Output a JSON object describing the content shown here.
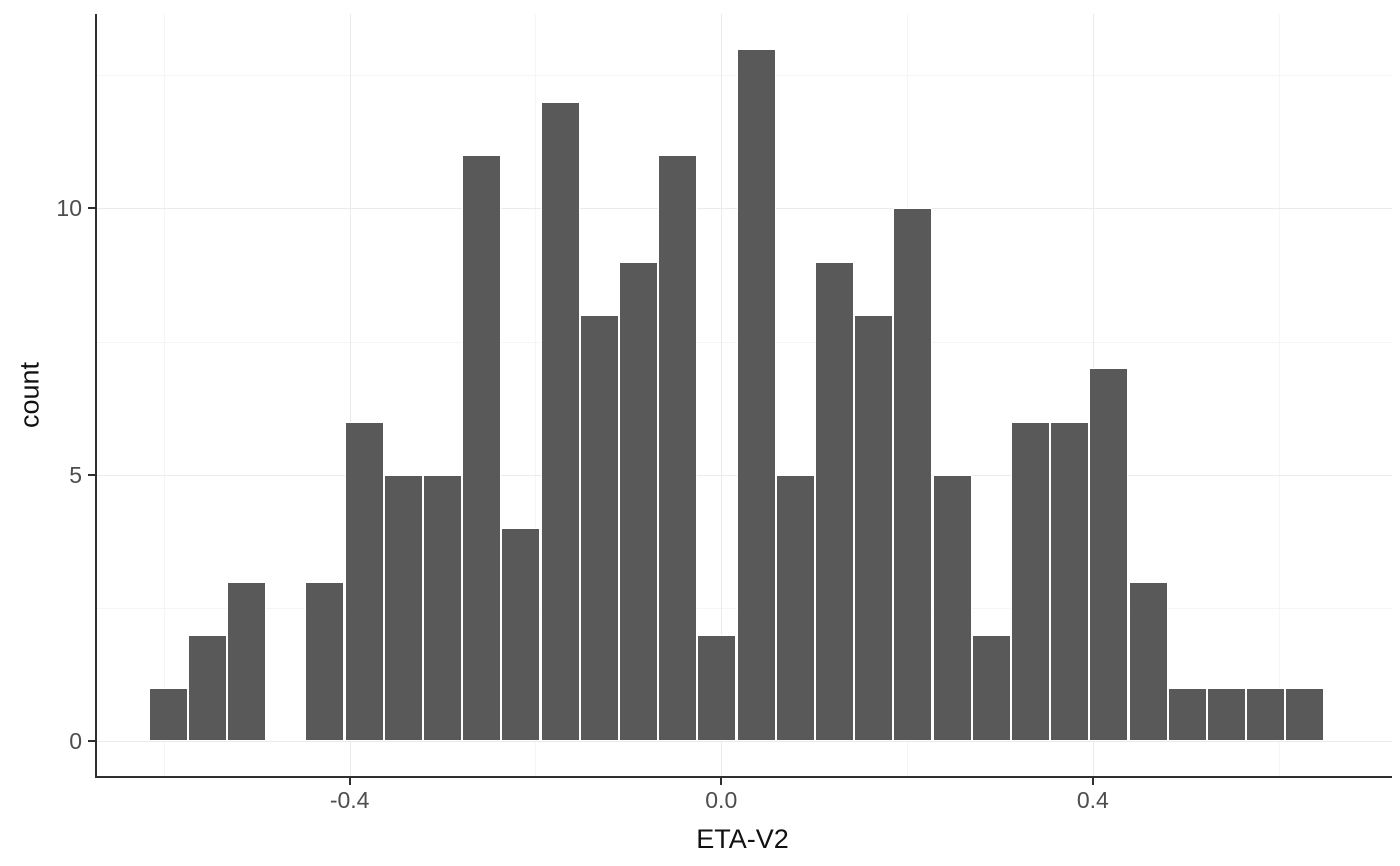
{
  "chart_data": {
    "type": "bar",
    "subtype": "histogram",
    "title": "",
    "xlabel": "ETA-V2",
    "ylabel": "count",
    "n_bins": 30,
    "bin_width": 0.0422,
    "bin_centers": [
      -0.595,
      -0.553,
      -0.511,
      -0.469,
      -0.427,
      -0.384,
      -0.342,
      -0.3,
      -0.258,
      -0.216,
      -0.173,
      -0.131,
      -0.089,
      -0.047,
      -0.005,
      0.038,
      0.08,
      0.122,
      0.164,
      0.206,
      0.249,
      0.291,
      0.333,
      0.375,
      0.417,
      0.46,
      0.502,
      0.544,
      0.586,
      0.628
    ],
    "counts": [
      1,
      2,
      3,
      0,
      3,
      6,
      5,
      5,
      11,
      4,
      12,
      8,
      9,
      11,
      2,
      13,
      5,
      9,
      8,
      10,
      5,
      2,
      6,
      6,
      7,
      3,
      1,
      1,
      1,
      1
    ],
    "total_count": 160,
    "xlim": [
      -0.672,
      0.722
    ],
    "ylim": [
      -0.65,
      13.65
    ],
    "x_ticks": [
      {
        "value": -0.4,
        "label": "-0.4"
      },
      {
        "value": 0.0,
        "label": "0.0"
      },
      {
        "value": 0.4,
        "label": "0.4"
      }
    ],
    "y_ticks": [
      {
        "value": 0,
        "label": "0"
      },
      {
        "value": 5,
        "label": "5"
      },
      {
        "value": 10,
        "label": "10"
      }
    ],
    "x_minor_gridlines": [
      -0.6,
      -0.2,
      0.2,
      0.6
    ],
    "y_minor_gridlines": [
      2.5,
      7.5,
      12.5
    ],
    "colors": {
      "bar_fill": "#595959",
      "bar_stroke": "#ffffff",
      "grid_major": "#ebebeb",
      "grid_minor": "#f5f5f5",
      "axis_line": "#2f2f2f",
      "tick_label": "#4d4d4d",
      "axis_title": "#111111",
      "background": "#ffffff"
    },
    "legend": "none",
    "grid": "on"
  }
}
